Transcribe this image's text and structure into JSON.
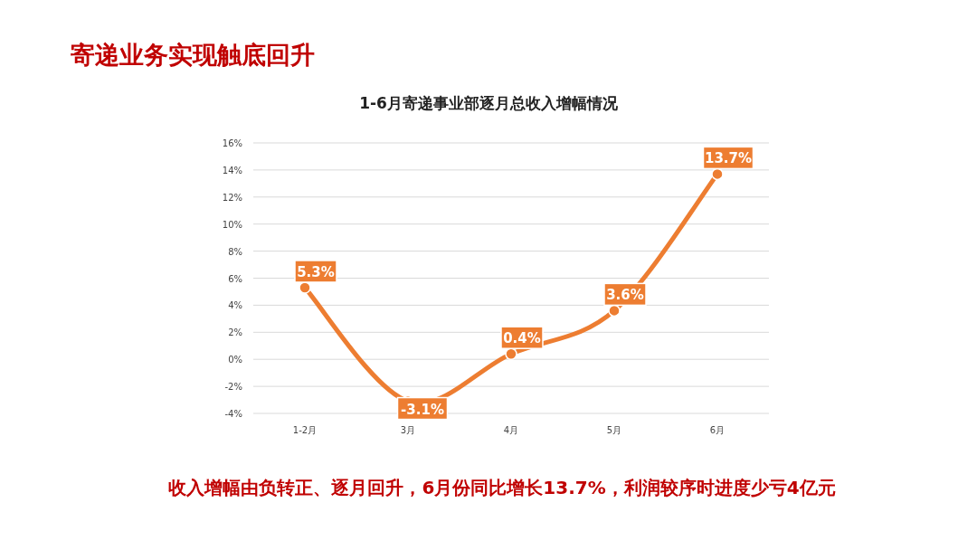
{
  "chart_data": {
    "type": "line",
    "title": "寄递业务实现触底回升",
    "subtitle": "1-6月寄递事业部逐月总收入增幅情况",
    "categories": [
      "1-2月",
      "3月",
      "4月",
      "5月",
      "6月"
    ],
    "series": [
      {
        "color": "#ed7d31",
        "values": [
          5.3,
          -3.1,
          0.4,
          3.6,
          13.7
        ],
        "value_labels": [
          "5.3%",
          "-3.1%",
          "0.4%",
          "3.6%",
          "13.7%"
        ]
      }
    ],
    "ylim": [
      -4,
      16
    ],
    "yticks": [
      {
        "value": -4,
        "label": "-4%"
      },
      {
        "value": -2,
        "label": "-2%"
      },
      {
        "value": 0,
        "label": "0%"
      },
      {
        "value": 2,
        "label": "2%"
      },
      {
        "value": 4,
        "label": "4%"
      },
      {
        "value": 6,
        "label": "6%"
      },
      {
        "value": 8,
        "label": "8%"
      },
      {
        "value": 10,
        "label": "10%"
      },
      {
        "value": 12,
        "label": "12%"
      },
      {
        "value": 14,
        "label": "14%"
      },
      {
        "value": 16,
        "label": "16%"
      }
    ],
    "grid": "y",
    "marker": "circle",
    "line_style": "solid",
    "annotations": [
      "收入增幅由负转正、逐月回升，6月份同比增长13.7%，利润较序时进度少亏4亿元"
    ]
  }
}
